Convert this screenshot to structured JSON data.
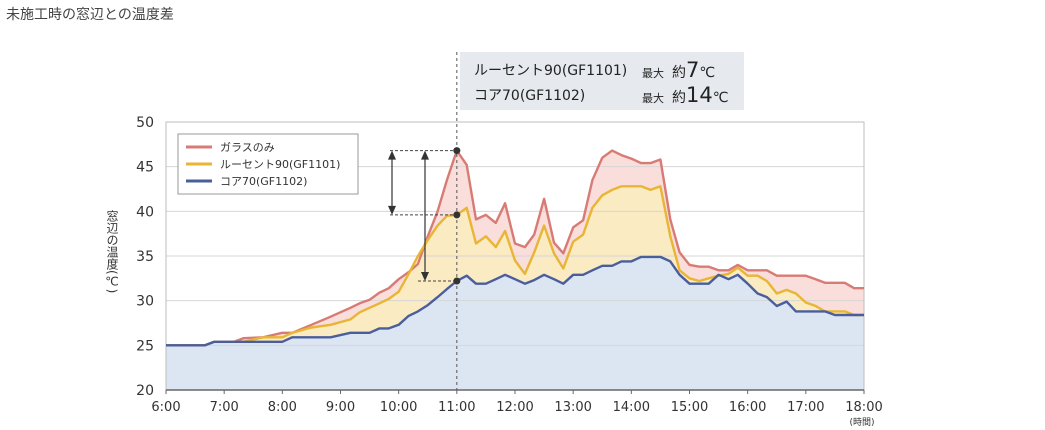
{
  "page_title": "未施工時の窓辺との温度差",
  "callout": {
    "rows": [
      {
        "name": "ルーセント90(GF1101)",
        "max_label": "最大",
        "approx": "約",
        "value": "7",
        "unit": "℃"
      },
      {
        "name": "コア70(GF1102)",
        "max_label": "最大",
        "approx": "約",
        "value": "14",
        "unit": "℃"
      }
    ]
  },
  "colors": {
    "glass": "#d87b74",
    "lucent": "#e8b534",
    "core": "#4a5e9c",
    "glass_fill": "#f9dedb",
    "lucent_fill": "#fbebc3",
    "core_fill": "#dce6f3"
  },
  "chart_data": {
    "type": "area",
    "xlabel": "(時間)",
    "ylabel": "窓辺の温度(℃)",
    "xlim": [
      6,
      18
    ],
    "ylim": [
      20,
      50
    ],
    "x_ticks": [
      "6:00",
      "7:00",
      "8:00",
      "9:00",
      "10:00",
      "11:00",
      "12:00",
      "13:00",
      "14:00",
      "15:00",
      "16:00",
      "17:00",
      "18:00"
    ],
    "y_ticks": [
      20,
      25,
      30,
      35,
      40,
      45,
      50
    ],
    "grid": true,
    "legend_position": "top-left",
    "marker_time": 11,
    "x": [
      6,
      6.67,
      6.83,
      7.17,
      7.33,
      7.67,
      8,
      8.17,
      8.5,
      8.83,
      9.17,
      9.33,
      9.5,
      9.67,
      9.83,
      10,
      10.17,
      10.33,
      10.5,
      10.67,
      10.83,
      11,
      11.17,
      11.33,
      11.5,
      11.67,
      11.83,
      12,
      12.17,
      12.33,
      12.5,
      12.67,
      12.83,
      13,
      13.17,
      13.33,
      13.5,
      13.67,
      13.83,
      14,
      14.17,
      14.33,
      14.5,
      14.67,
      14.83,
      15,
      15.17,
      15.33,
      15.5,
      15.67,
      15.83,
      16,
      16.17,
      16.33,
      16.5,
      16.67,
      16.83,
      17,
      17.17,
      17.33,
      17.5,
      17.67,
      17.83,
      18
    ],
    "series": [
      {
        "name": "ガラスのみ",
        "values": [
          25,
          25,
          25.4,
          25.4,
          25.8,
          25.9,
          26.4,
          26.4,
          27.3,
          28.2,
          29.2,
          29.7,
          30.1,
          30.9,
          31.4,
          32.4,
          33.2,
          34.1,
          37.2,
          40,
          43.5,
          46.8,
          45.2,
          39.1,
          39.6,
          38.7,
          40.9,
          36.4,
          36,
          37.4,
          41.4,
          36.5,
          35.3,
          38.2,
          39,
          43.5,
          46,
          46.8,
          46.3,
          45.9,
          45.4,
          45.4,
          45.8,
          39.1,
          35.4,
          34,
          33.8,
          33.8,
          33.4,
          33.4,
          34,
          33.4,
          33.4,
          33.4,
          32.8,
          32.8,
          32.8,
          32.8,
          32.4,
          32,
          32,
          32,
          31.4,
          31.4
        ]
      },
      {
        "name": "ルーセント90(GF1101)",
        "values": [
          25,
          25,
          25.4,
          25.4,
          25.4,
          25.9,
          25.9,
          26.4,
          27,
          27.3,
          27.9,
          28.7,
          29.2,
          29.7,
          30.2,
          31,
          33,
          35,
          36.8,
          38.4,
          39.5,
          39.6,
          40.4,
          36.4,
          37.2,
          36,
          37.8,
          34.5,
          33,
          35.4,
          38.4,
          35.3,
          33.6,
          36.6,
          37.4,
          40.4,
          41.8,
          42.4,
          42.8,
          42.8,
          42.8,
          42.4,
          42.8,
          37.2,
          33.4,
          32.5,
          32.2,
          32.5,
          32.8,
          33,
          33.7,
          32.8,
          32.8,
          32.2,
          30.8,
          31.2,
          30.8,
          29.8,
          29.4,
          28.8,
          28.8,
          28.8,
          28.4,
          28.4
        ]
      },
      {
        "name": "コア70(GF1102)",
        "values": [
          25,
          25,
          25.4,
          25.4,
          25.4,
          25.4,
          25.4,
          25.9,
          25.9,
          25.9,
          26.4,
          26.4,
          26.4,
          26.9,
          26.9,
          27.3,
          28.3,
          28.8,
          29.5,
          30.4,
          31.3,
          32.2,
          32.8,
          31.9,
          31.9,
          32.4,
          32.9,
          32.4,
          31.9,
          32.3,
          32.9,
          32.4,
          31.9,
          32.9,
          32.9,
          33.4,
          33.9,
          33.9,
          34.4,
          34.4,
          34.9,
          34.9,
          34.9,
          34.4,
          32.9,
          31.9,
          31.9,
          31.9,
          32.9,
          32.4,
          32.9,
          31.9,
          30.8,
          30.4,
          29.4,
          29.9,
          28.8,
          28.8,
          28.8,
          28.8,
          28.4,
          28.4,
          28.4,
          28.4
        ]
      }
    ]
  }
}
